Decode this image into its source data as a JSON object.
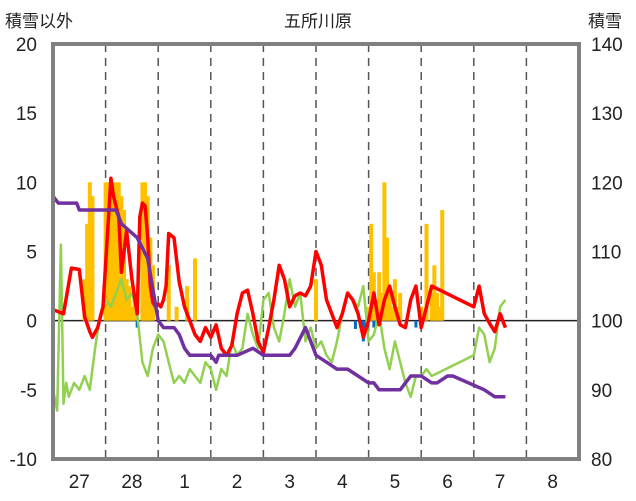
{
  "chart_data": {
    "type": "line",
    "title": "五所川原",
    "y_left_label": "積雪以外",
    "y_right_label": "積雪",
    "y_left_ticks": [
      -10,
      -5,
      0,
      5,
      10,
      15,
      20
    ],
    "y_right_ticks": [
      80,
      90,
      100,
      110,
      120,
      130,
      140
    ],
    "ylim_left": [
      -10,
      20
    ],
    "ylim_right": [
      80,
      140
    ],
    "x_ticks": [
      "27",
      "28",
      "1",
      "2",
      "3",
      "4",
      "5",
      "6",
      "7",
      "8"
    ],
    "xlim": [
      0,
      10
    ],
    "grid": "dashed vertical lines at day boundaries; zero line",
    "colors": {
      "temperature": "#ff0000",
      "dewpoint": "#92d050",
      "snow_depth": "#7030a0",
      "precip_snow": "#ffc000",
      "precip_other": "#0070c0"
    },
    "series": [
      {
        "name": "",
        "axis": "left",
        "x": [
          0.0,
          0.2,
          0.35,
          0.5,
          0.6,
          0.7,
          0.75,
          0.85,
          0.95,
          1.1,
          1.15,
          1.25,
          1.3,
          1.4,
          1.5,
          1.6,
          1.65,
          1.7,
          1.75,
          1.8,
          1.85,
          1.9,
          1.95,
          2.0,
          2.05,
          2.1,
          2.15,
          2.2,
          2.3,
          2.4,
          2.5,
          2.6,
          2.7,
          2.8,
          2.9,
          3.0,
          3.1,
          3.2,
          3.3,
          3.4,
          3.5,
          3.6,
          3.7,
          3.8,
          3.9,
          4.0,
          4.1,
          4.2,
          4.3,
          4.4,
          4.5,
          4.6,
          4.7,
          4.8,
          4.9,
          5.0,
          5.1,
          5.2,
          5.3,
          5.4,
          5.5,
          5.6,
          5.7,
          5.8,
          5.9,
          6.0,
          6.1,
          6.2,
          6.3,
          6.4,
          6.5,
          6.6,
          6.7,
          6.8,
          6.9,
          7.0,
          7.1,
          7.2,
          8.0,
          8.1,
          8.2,
          8.3,
          8.4,
          8.5,
          8.6
        ],
        "y": [
          0.8,
          0.5,
          3.8,
          3.7,
          0.3,
          -0.8,
          -1.2,
          -0.5,
          1.0,
          10.3,
          9.0,
          7.5,
          3.5,
          6.5,
          3.0,
          0.5,
          7.5,
          8.5,
          8.3,
          6.0,
          2.5,
          1.3,
          1.0,
          1.2,
          1.0,
          1.5,
          2.5,
          6.3,
          6.0,
          2.8,
          1.0,
          0.0,
          -1.0,
          -1.5,
          -0.5,
          -1.2,
          -0.3,
          -2.0,
          -2.5,
          -1.8,
          0.5,
          2.0,
          2.2,
          0.5,
          -1.5,
          -2.3,
          -0.5,
          1.5,
          4.0,
          3.0,
          1.0,
          1.8,
          2.0,
          1.8,
          2.5,
          5.0,
          4.0,
          1.5,
          0.5,
          -0.5,
          0.5,
          2.0,
          1.5,
          0.5,
          -1.2,
          0.0,
          2.0,
          -0.3,
          1.5,
          2.5,
          1.0,
          -0.3,
          -0.5,
          1.5,
          2.5,
          -0.5,
          1.0,
          2.5,
          1.0,
          2.5,
          0.5,
          -0.2,
          -0.8,
          0.5,
          -0.5
        ]
      },
      {
        "name": "",
        "axis": "left",
        "x": [
          0.0,
          0.08,
          0.15,
          0.2,
          0.25,
          0.3,
          0.4,
          0.5,
          0.6,
          0.7,
          0.8,
          0.9,
          1.0,
          1.1,
          1.2,
          1.3,
          1.4,
          1.5,
          1.6,
          1.7,
          1.8,
          1.9,
          2.0,
          2.1,
          2.2,
          2.3,
          2.4,
          2.5,
          2.6,
          2.7,
          2.8,
          2.9,
          3.0,
          3.1,
          3.2,
          3.3,
          3.4,
          3.5,
          3.6,
          3.7,
          3.8,
          3.9,
          4.0,
          4.1,
          4.2,
          4.3,
          4.4,
          4.5,
          4.6,
          4.7,
          4.8,
          4.9,
          5.0,
          5.1,
          5.2,
          5.3,
          5.4,
          5.5,
          5.6,
          5.7,
          5.8,
          5.9,
          6.0,
          6.1,
          6.2,
          6.3,
          6.4,
          6.5,
          6.6,
          6.7,
          6.8,
          6.9,
          7.0,
          7.1,
          7.2,
          8.0,
          8.1,
          8.2,
          8.3,
          8.4,
          8.5,
          8.6
        ],
        "y": [
          -5.0,
          -6.5,
          5.5,
          -6.0,
          -4.5,
          -5.5,
          -4.5,
          -5.0,
          -4.0,
          -5.0,
          -2.0,
          0.5,
          1.5,
          1.0,
          2.0,
          3.0,
          1.5,
          2.0,
          0.5,
          -3.0,
          -4.0,
          -2.0,
          -1.0,
          -1.5,
          -3.0,
          -4.5,
          -4.0,
          -4.5,
          -3.5,
          -4.0,
          -4.5,
          -3.0,
          -3.5,
          -5.0,
          -3.5,
          -4.0,
          -1.5,
          -2.5,
          -2.0,
          0.5,
          -1.0,
          -2.0,
          1.5,
          2.0,
          -0.5,
          -1.5,
          0.5,
          3.0,
          1.0,
          2.0,
          -1.5,
          -0.5,
          -2.0,
          -1.5,
          -2.5,
          -3.0,
          -1.5,
          0.5,
          2.0,
          1.5,
          1.0,
          2.5,
          -1.5,
          -1.0,
          0.5,
          -2.0,
          -3.5,
          -1.5,
          -3.0,
          -4.5,
          -5.5,
          -4.0,
          -4.0,
          -3.5,
          -4.0,
          -2.5,
          -0.5,
          -1.0,
          -3.0,
          -2.0,
          1.0,
          1.5
        ]
      },
      {
        "name": "",
        "axis": "right",
        "x": [
          0.0,
          0.1,
          0.45,
          0.5,
          1.2,
          1.3,
          1.6,
          1.8,
          2.0,
          2.1,
          2.3,
          2.4,
          2.5,
          2.6,
          3.0,
          3.1,
          3.15,
          3.5,
          3.8,
          4.0,
          4.4,
          4.5,
          4.6,
          4.8,
          5.0,
          5.2,
          5.4,
          5.6,
          5.8,
          6.0,
          6.1,
          6.2,
          6.6,
          6.8,
          7.0,
          7.2,
          7.3,
          7.5,
          7.6,
          8.2,
          8.4,
          8.6
        ],
        "y": [
          118,
          117,
          117,
          116,
          116,
          114,
          112,
          109,
          100,
          99,
          99,
          98,
          96,
          95,
          95,
          94,
          95,
          95,
          96,
          95,
          95,
          95,
          96,
          99,
          95,
          94,
          93,
          93,
          92,
          91,
          91,
          90,
          90,
          92,
          92,
          91,
          91,
          92,
          92,
          90,
          89,
          89
        ]
      }
    ],
    "precip_bars": {
      "x": [
        0.6,
        0.65,
        0.7,
        0.75,
        1.0,
        1.05,
        1.1,
        1.15,
        1.2,
        1.25,
        1.3,
        1.35,
        1.4,
        1.45,
        1.5,
        1.55,
        1.7,
        1.75,
        1.8,
        1.85,
        1.9,
        2.2,
        2.35,
        2.55,
        2.7,
        5.0,
        6.0,
        6.05,
        6.1,
        6.15,
        6.2,
        6.25,
        6.3,
        6.35,
        6.4,
        6.45,
        6.5,
        6.55,
        6.6,
        7.0,
        7.1,
        7.2,
        7.25,
        7.3,
        7.35,
        7.4
      ],
      "y": [
        3.0,
        7.0,
        10.0,
        9.0,
        10.0,
        10.0,
        9.0,
        10.0,
        10.0,
        10.0,
        9.0,
        8.0,
        3.0,
        2.5,
        1.0,
        1.5,
        10.0,
        10.0,
        9.0,
        6.0,
        4.0,
        4.0,
        1.0,
        2.5,
        4.5,
        3.0,
        1.0,
        7.0,
        3.5,
        1.5,
        3.5,
        2.0,
        10.0,
        6.0,
        2.0,
        1.0,
        3.0,
        1.0,
        2.0,
        1.0,
        7.0,
        2.0,
        4.0,
        2.0,
        1.0,
        8.0
      ],
      "negative_x": [
        1.6,
        5.75,
        5.85,
        5.9,
        5.95,
        6.1,
        6.9
      ],
      "negative_y": [
        -0.5,
        -0.6,
        -0.5,
        -1.5,
        -0.8,
        -0.5,
        -0.5
      ]
    }
  }
}
